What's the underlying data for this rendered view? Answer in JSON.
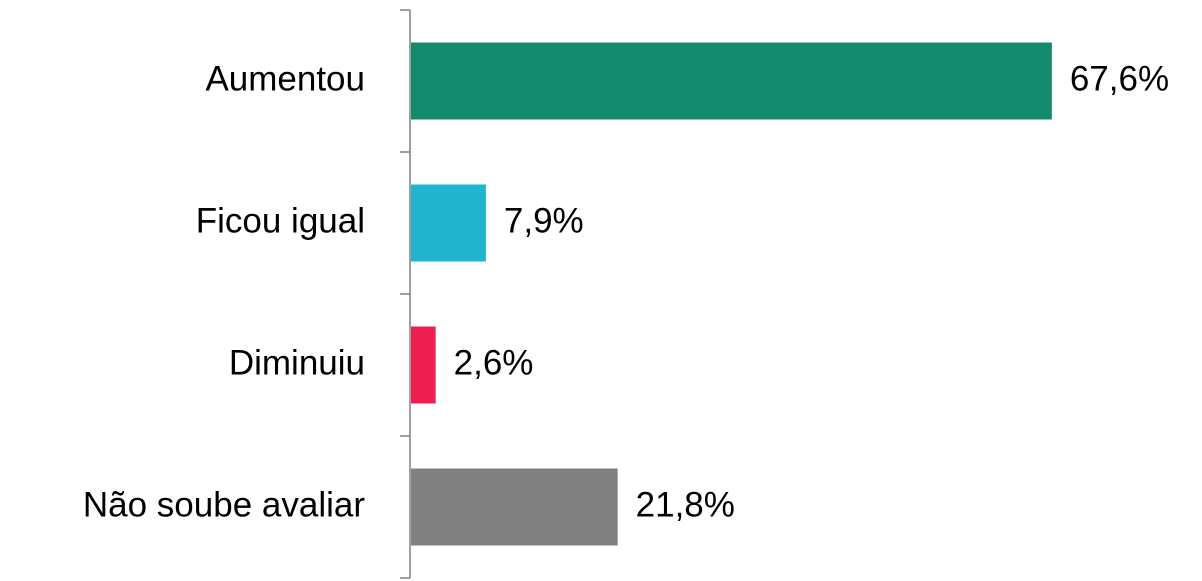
{
  "chart_data": {
    "type": "bar",
    "orientation": "horizontal",
    "categories": [
      "Aumentou",
      "Ficou igual",
      "Diminuiu",
      "Não soube avaliar"
    ],
    "values": [
      67.6,
      7.9,
      2.6,
      21.8
    ],
    "value_labels": [
      "67,6%",
      "7,9%",
      "2,6%",
      "21,8%"
    ],
    "colors": [
      "#138a6c",
      "#21b4cf",
      "#ec1f50",
      "#808080"
    ]
  }
}
